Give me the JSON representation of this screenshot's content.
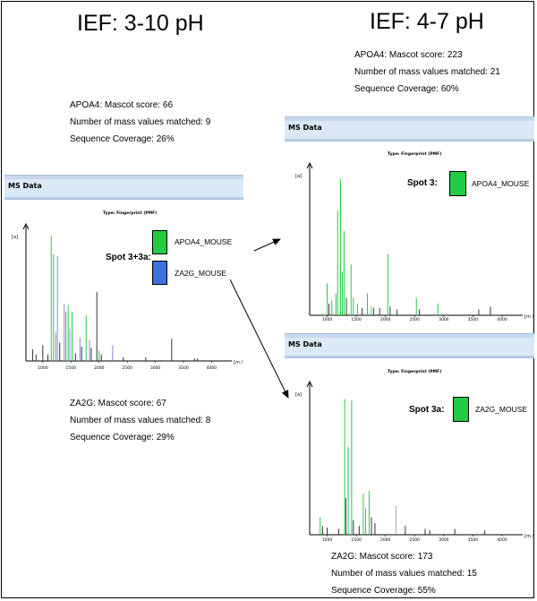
{
  "titles": {
    "left": "IEF: 3-10 pH",
    "right": "IEF: 4-7 pH"
  },
  "info_left_top": {
    "score": "APOA4: Mascot score: 66",
    "matched": "Number of mass values matched: 9",
    "coverage": "Sequence Coverage: 26%"
  },
  "info_right_top": {
    "score": "APOA4: Mascot score: 223",
    "matched": "Number of mass values matched: 21",
    "coverage": "Sequence Coverage: 60%"
  },
  "info_left_bottom": {
    "score": "ZA2G: Mascot score: 67",
    "matched": "Number of mass values matched: 8",
    "coverage": "Sequence Coverage: 29%"
  },
  "info_right_bottom": {
    "score": "ZA2G: Mascot score: 173",
    "matched": "Number of mass values matched: 15",
    "coverage": "Sequence Coverage: 55%"
  },
  "ms_header": "MS Data",
  "plot_type": "Type: Fingerprint (PMF)",
  "y_axis_label": "[a]",
  "x_axis_label": "[m / z]",
  "x_ticks": [
    "1000",
    "1500",
    "2000",
    "2500",
    "3000",
    "3500",
    "4000"
  ],
  "colors": {
    "apoa4": "#22cc44",
    "za2g": "#3f6fe0",
    "header_bar": "#dbe9f6"
  },
  "spot_left": {
    "label": "Spot 3+3a:",
    "legend": [
      {
        "name": "APOA4_MOUSE",
        "color": "#22cc44"
      },
      {
        "name": "ZA2G_MOUSE",
        "color": "#3f6fe0"
      }
    ]
  },
  "spot_right_top": {
    "label": "Spot 3:",
    "legend": [
      {
        "name": "APOA4_MOUSE",
        "color": "#22cc44"
      }
    ]
  },
  "spot_right_bottom": {
    "label": "Spot 3a:",
    "legend": [
      {
        "name": "ZA2G_MOUSE",
        "color": "#22cc44"
      }
    ]
  },
  "chart_data": [
    {
      "type": "bar",
      "name": "spot-3+3a",
      "xlim": [
        700,
        4200
      ],
      "ylim": [
        0,
        1
      ],
      "peaks": [
        {
          "x": 820,
          "y": 0.09,
          "c": "k"
        },
        {
          "x": 880,
          "y": 0.05,
          "c": "k"
        },
        {
          "x": 1000,
          "y": 0.12,
          "c": "k"
        },
        {
          "x": 1090,
          "y": 0.05,
          "c": "k"
        },
        {
          "x": 1150,
          "y": 0.96,
          "c": "g"
        },
        {
          "x": 1190,
          "y": 0.82,
          "c": "g"
        },
        {
          "x": 1230,
          "y": 0.22,
          "c": "b"
        },
        {
          "x": 1260,
          "y": 0.81,
          "c": "b"
        },
        {
          "x": 1300,
          "y": 0.14,
          "c": "k"
        },
        {
          "x": 1380,
          "y": 0.44,
          "c": "b"
        },
        {
          "x": 1410,
          "y": 0.38,
          "c": "g"
        },
        {
          "x": 1450,
          "y": 0.43,
          "c": "g"
        },
        {
          "x": 1480,
          "y": 0.25,
          "c": "b"
        },
        {
          "x": 1520,
          "y": 0.38,
          "c": "g"
        },
        {
          "x": 1580,
          "y": 0.06,
          "c": "k"
        },
        {
          "x": 1660,
          "y": 0.18,
          "c": "b"
        },
        {
          "x": 1690,
          "y": 0.11,
          "c": "k"
        },
        {
          "x": 1770,
          "y": 0.35,
          "c": "g"
        },
        {
          "x": 1830,
          "y": 0.16,
          "c": "b"
        },
        {
          "x": 1860,
          "y": 0.1,
          "c": "k"
        },
        {
          "x": 1960,
          "y": 0.53,
          "c": "k"
        },
        {
          "x": 2000,
          "y": 0.08,
          "c": "g"
        },
        {
          "x": 2040,
          "y": 0.05,
          "c": "k"
        },
        {
          "x": 2240,
          "y": 0.12,
          "c": "b"
        },
        {
          "x": 2430,
          "y": 0.03,
          "c": "k"
        },
        {
          "x": 2830,
          "y": 0.03,
          "c": "k"
        },
        {
          "x": 3290,
          "y": 0.17,
          "c": "k"
        },
        {
          "x": 3700,
          "y": 0.02,
          "c": "k"
        },
        {
          "x": 3750,
          "y": 0.02,
          "c": "k"
        }
      ]
    },
    {
      "type": "bar",
      "name": "spot-3",
      "xlim": [
        700,
        4200
      ],
      "ylim": [
        0,
        1
      ],
      "peaks": [
        {
          "x": 1000,
          "y": 0.22,
          "c": "g"
        },
        {
          "x": 1030,
          "y": 0.08,
          "c": "k"
        },
        {
          "x": 1080,
          "y": 0.1,
          "c": "g"
        },
        {
          "x": 1150,
          "y": 0.15,
          "c": "g"
        },
        {
          "x": 1180,
          "y": 0.72,
          "c": "g"
        },
        {
          "x": 1230,
          "y": 0.94,
          "c": "g"
        },
        {
          "x": 1260,
          "y": 0.3,
          "c": "g"
        },
        {
          "x": 1290,
          "y": 0.58,
          "c": "g"
        },
        {
          "x": 1330,
          "y": 0.12,
          "c": "k"
        },
        {
          "x": 1410,
          "y": 0.35,
          "c": "g"
        },
        {
          "x": 1450,
          "y": 0.12,
          "c": "g"
        },
        {
          "x": 1520,
          "y": 0.08,
          "c": "g"
        },
        {
          "x": 1600,
          "y": 0.05,
          "c": "k"
        },
        {
          "x": 1690,
          "y": 0.15,
          "c": "g"
        },
        {
          "x": 1760,
          "y": 0.06,
          "c": "g"
        },
        {
          "x": 1800,
          "y": 0.05,
          "c": "k"
        },
        {
          "x": 1900,
          "y": 0.05,
          "c": "k"
        },
        {
          "x": 2040,
          "y": 0.42,
          "c": "g"
        },
        {
          "x": 2080,
          "y": 0.06,
          "c": "k"
        },
        {
          "x": 2200,
          "y": 0.04,
          "c": "k"
        },
        {
          "x": 2530,
          "y": 0.12,
          "c": "g"
        },
        {
          "x": 2580,
          "y": 0.04,
          "c": "k"
        },
        {
          "x": 2900,
          "y": 0.08,
          "c": "g"
        },
        {
          "x": 3600,
          "y": 0.04,
          "c": "k"
        },
        {
          "x": 3800,
          "y": 0.06,
          "c": "k"
        }
      ]
    },
    {
      "type": "bar",
      "name": "spot-3a",
      "xlim": [
        700,
        4200
      ],
      "ylim": [
        0,
        1
      ],
      "peaks": [
        {
          "x": 880,
          "y": 0.12,
          "c": "g"
        },
        {
          "x": 920,
          "y": 0.06,
          "c": "k"
        },
        {
          "x": 1000,
          "y": 0.05,
          "c": "k"
        },
        {
          "x": 1200,
          "y": 0.04,
          "c": "k"
        },
        {
          "x": 1300,
          "y": 0.93,
          "c": "g"
        },
        {
          "x": 1320,
          "y": 0.25,
          "c": "k"
        },
        {
          "x": 1360,
          "y": 0.6,
          "c": "g"
        },
        {
          "x": 1420,
          "y": 0.92,
          "c": "g"
        },
        {
          "x": 1450,
          "y": 0.1,
          "c": "k"
        },
        {
          "x": 1550,
          "y": 0.06,
          "c": "k"
        },
        {
          "x": 1620,
          "y": 0.28,
          "c": "g"
        },
        {
          "x": 1660,
          "y": 0.18,
          "c": "g"
        },
        {
          "x": 1720,
          "y": 0.3,
          "c": "g"
        },
        {
          "x": 1760,
          "y": 0.12,
          "c": "k"
        },
        {
          "x": 1820,
          "y": 0.08,
          "c": "k"
        },
        {
          "x": 2180,
          "y": 0.2,
          "c": "n"
        },
        {
          "x": 2340,
          "y": 0.06,
          "c": "k"
        },
        {
          "x": 2680,
          "y": 0.04,
          "c": "k"
        },
        {
          "x": 2760,
          "y": 0.03,
          "c": "k"
        },
        {
          "x": 3190,
          "y": 0.04,
          "c": "k"
        },
        {
          "x": 3700,
          "y": 0.03,
          "c": "k"
        }
      ]
    }
  ]
}
